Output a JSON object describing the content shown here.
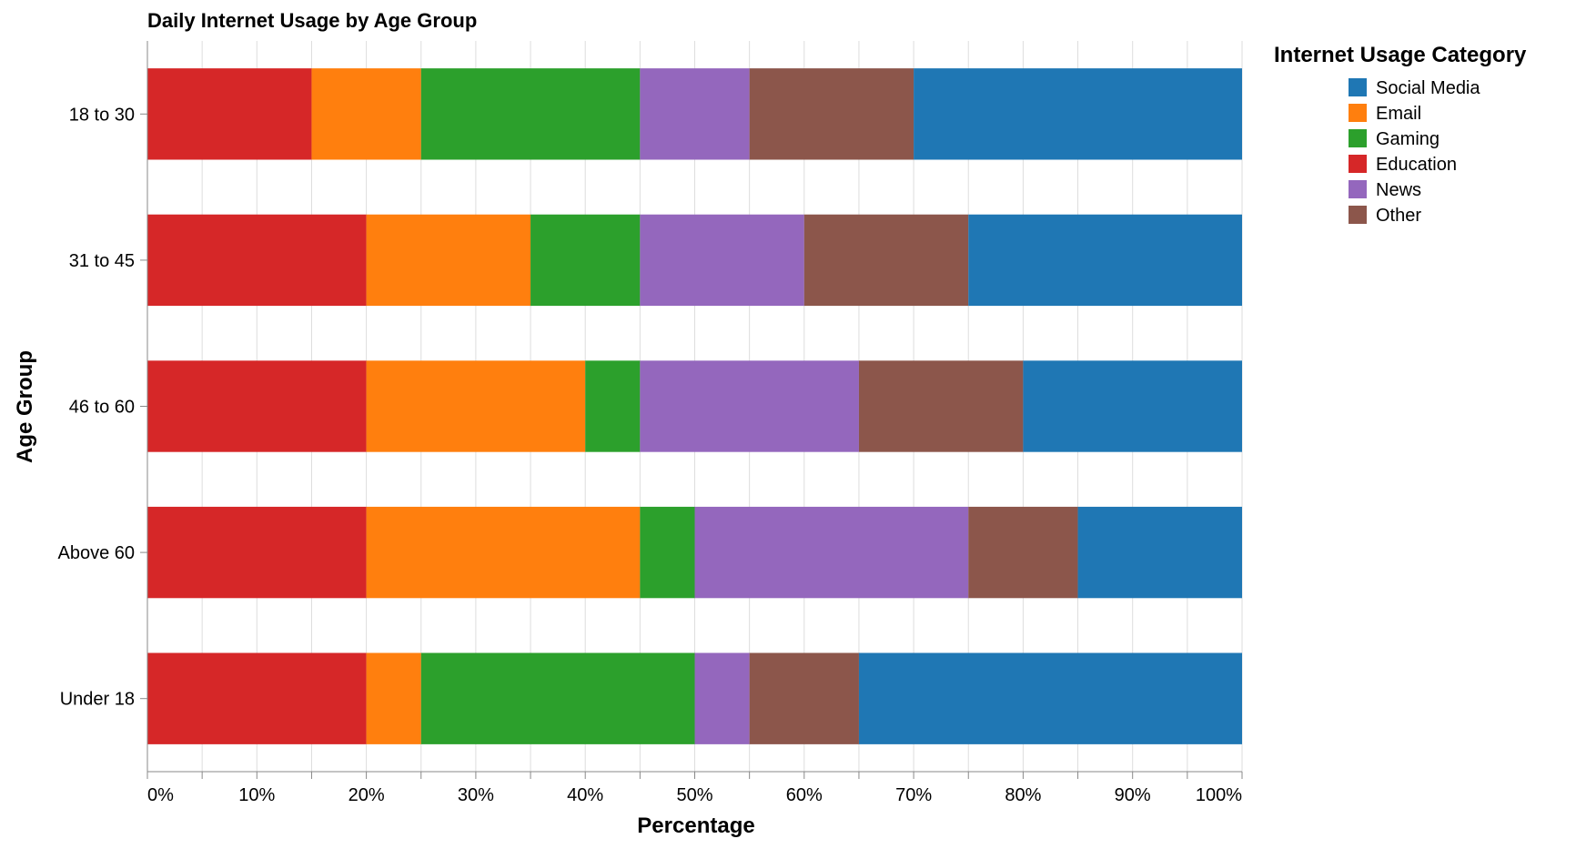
{
  "chart_data": {
    "type": "bar",
    "orientation": "horizontal",
    "stacked": true,
    "normalized": true,
    "title": "Daily Internet Usage by Age Group",
    "xlabel": "Percentage",
    "ylabel": "Age Group",
    "xlim": [
      0,
      100
    ],
    "x_ticks": [
      "0%",
      "10%",
      "20%",
      "30%",
      "40%",
      "50%",
      "60%",
      "70%",
      "80%",
      "90%",
      "100%"
    ],
    "grid": true,
    "legend": {
      "title": "Internet Usage Category",
      "placement": "right",
      "entries": [
        "Social Media",
        "Email",
        "Gaming",
        "Education",
        "News",
        "Other"
      ]
    },
    "categories": [
      "18 to 30",
      "31 to 45",
      "46 to 60",
      "Above 60",
      "Under 18"
    ],
    "stack_order": [
      "Education",
      "Email",
      "Gaming",
      "News",
      "Other",
      "Social Media"
    ],
    "series": [
      {
        "name": "Social Media",
        "color": "#1f77b4",
        "values": [
          30,
          25,
          20,
          15,
          35
        ]
      },
      {
        "name": "Email",
        "color": "#ff7f0e",
        "values": [
          10,
          15,
          20,
          25,
          5
        ]
      },
      {
        "name": "Gaming",
        "color": "#2ca02c",
        "values": [
          20,
          10,
          5,
          5,
          25
        ]
      },
      {
        "name": "Education",
        "color": "#d62728",
        "values": [
          15,
          20,
          20,
          20,
          20
        ]
      },
      {
        "name": "News",
        "color": "#9467bd",
        "values": [
          10,
          15,
          20,
          25,
          5
        ]
      },
      {
        "name": "Other",
        "color": "#8c564b",
        "values": [
          15,
          15,
          15,
          10,
          10
        ]
      }
    ]
  }
}
